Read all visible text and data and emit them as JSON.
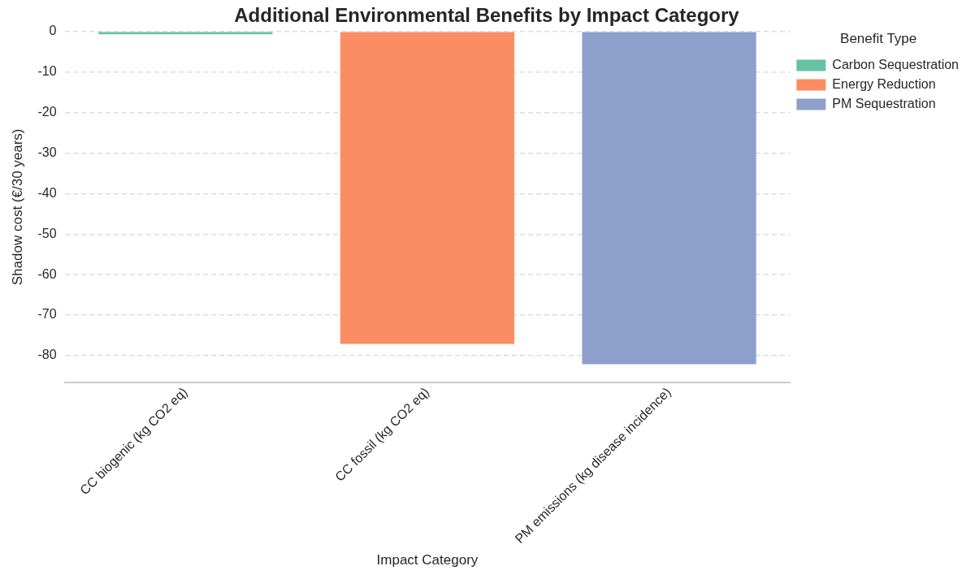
{
  "chart_data": {
    "type": "bar",
    "title": "Additional Environmental Benefits by Impact Category",
    "xlabel": "Impact Category",
    "ylabel": "Shadow cost (€/30 years)",
    "legend_title": "Benefit Type",
    "categories": [
      "CC biogenic (kg CO2 eq)",
      "CC fossil (kg CO2 eq)",
      "PM emissions (kg disease incidence)"
    ],
    "series": [
      {
        "name": "Carbon Sequestration",
        "color": "#66c2a5",
        "values": [
          -0.7,
          null,
          null
        ]
      },
      {
        "name": "Energy Reduction",
        "color": "#fc8d62",
        "values": [
          null,
          -77.1,
          null
        ]
      },
      {
        "name": "PM Sequestration",
        "color": "#8da0cb",
        "values": [
          null,
          null,
          -82.1
        ]
      }
    ],
    "ylim": [
      -86.6,
      0
    ],
    "yticks": [
      0,
      -10,
      -20,
      -30,
      -40,
      -50,
      -60,
      -70,
      -80
    ],
    "grid": "y",
    "legend": "top right"
  }
}
